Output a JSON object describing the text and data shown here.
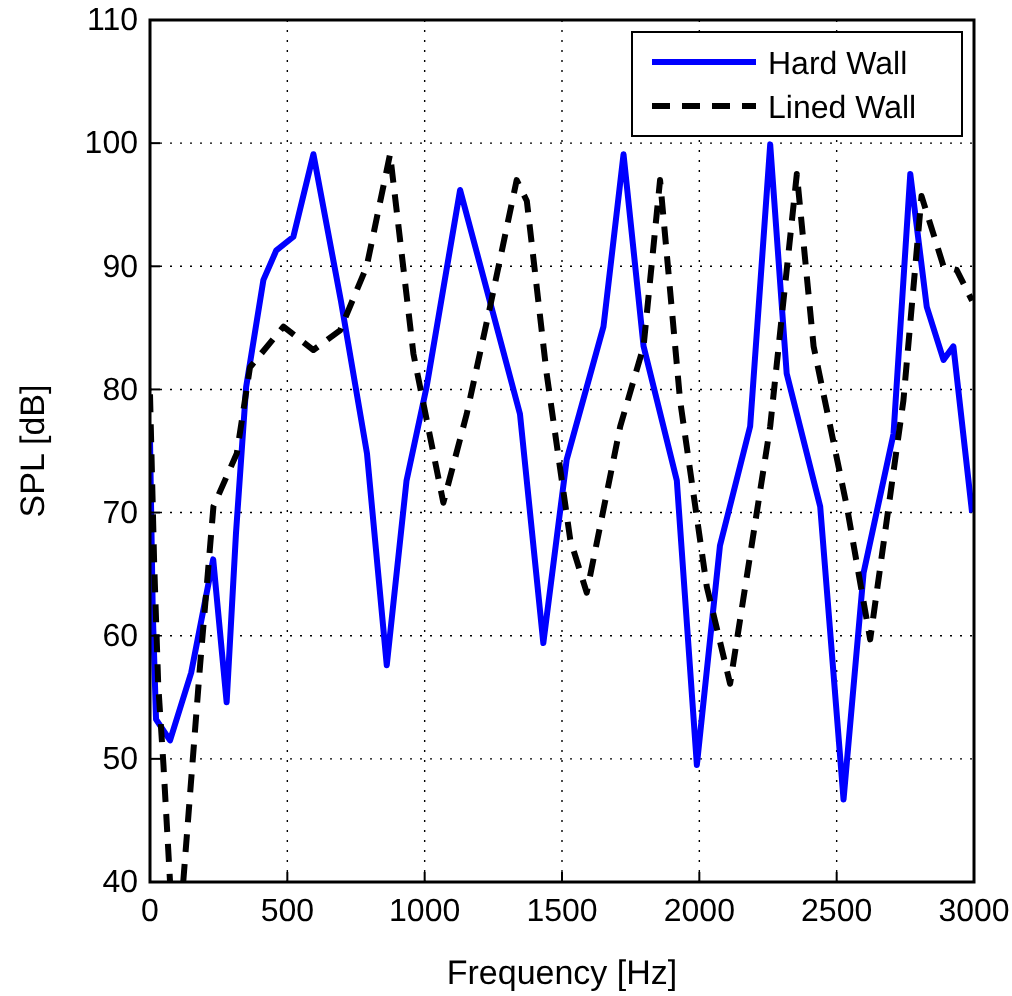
{
  "chart_data": {
    "type": "line",
    "xlabel": "Frequency [Hz]",
    "ylabel": "SPL [dB]",
    "xlim": [
      0,
      3000
    ],
    "ylim": [
      40,
      110
    ],
    "xticks": [
      0,
      500,
      1000,
      1500,
      2000,
      2500,
      3000
    ],
    "yticks": [
      40,
      50,
      60,
      70,
      80,
      90,
      100,
      110
    ],
    "grid": true,
    "legend": "top right",
    "series": [
      {
        "name": "Hard Wall",
        "color": "#0000ff",
        "line_style": "solid",
        "x": [
          0,
          10,
          22,
          73,
          150,
          230,
          279,
          313,
          350,
          413,
          460,
          522,
          595,
          695,
          790,
          862,
          934,
          1007,
          1129,
          1250,
          1347,
          1432,
          1517,
          1651,
          1724,
          1797,
          1918,
          1991,
          2075,
          2185,
          2258,
          2318,
          2440,
          2525,
          2598,
          2707,
          2768,
          2828,
          2889,
          2925,
          2993
        ],
        "values": [
          76,
          62,
          53.2,
          51.5,
          57,
          66.2,
          54.6,
          68.3,
          80.2,
          88.9,
          91.3,
          92.4,
          99.1,
          87.2,
          74.8,
          57.6,
          72.6,
          80.2,
          96.2,
          86.1,
          78,
          59.4,
          74.3,
          85.1,
          99.1,
          83.5,
          72.6,
          49.5,
          67.3,
          77,
          99.9,
          81.3,
          70.5,
          46.7,
          65.1,
          76.4,
          97.5,
          86.7,
          82.4,
          83.5,
          70
        ]
      },
      {
        "name": "Lined Wall",
        "color": "#000000",
        "line_style": "dashed",
        "x": [
          0,
          15,
          30,
          49,
          73,
          95,
          121,
          182,
          231,
          316,
          364,
          486,
          595,
          692,
          789,
          874,
          959,
          1068,
          1153,
          1238,
          1335,
          1372,
          1444,
          1530,
          1590,
          1712,
          1797,
          1857,
          1930,
          2027,
          2112,
          2258,
          2355,
          2416,
          2537,
          2622,
          2743,
          2809,
          2889,
          2937,
          2993
        ],
        "values": [
          79.6,
          66,
          56,
          49.5,
          40,
          null,
          40,
          57.5,
          70.5,
          74.8,
          81.8,
          85.1,
          83.2,
          84.8,
          90,
          99.1,
          82.9,
          70.8,
          78,
          86.7,
          97,
          95.3,
          81.3,
          67.8,
          63.5,
          77,
          83.5,
          97,
          79.1,
          64,
          56.1,
          77,
          97.5,
          83.5,
          70.5,
          59.7,
          79.1,
          95.7,
          90,
          89.7,
          87.2
        ]
      }
    ]
  }
}
